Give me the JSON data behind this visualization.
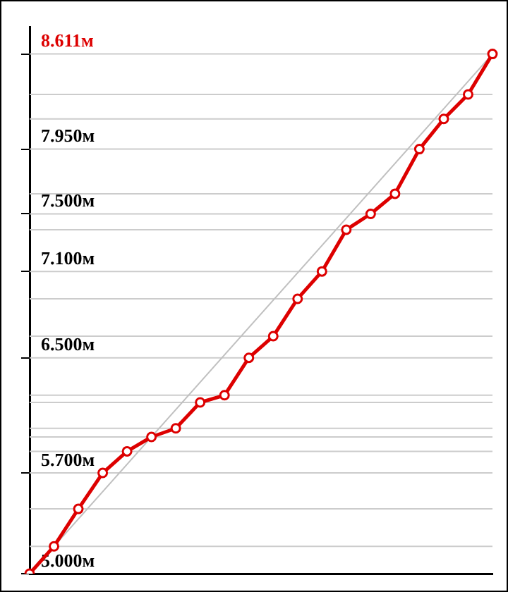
{
  "chart_data": {
    "type": "line",
    "categories": [
      null,
      null,
      null,
      null,
      null,
      null,
      null,
      null,
      null,
      null,
      null,
      null,
      null,
      null,
      null,
      null,
      null,
      null,
      null,
      null
    ],
    "series": [
      {
        "color": "#dd0000",
        "values": [
          5.0,
          5.19,
          5.45,
          5.7,
          5.85,
          5.95,
          6.01,
          6.19,
          6.24,
          6.5,
          6.65,
          6.91,
          7.1,
          7.39,
          7.5,
          7.64,
          7.95,
          8.16,
          8.33,
          8.611
        ],
        "marker": "circle"
      },
      {
        "type": "line",
        "color": "#c0c0c0",
        "values": [
          5.0,
          null,
          null,
          null,
          null,
          null,
          null,
          null,
          null,
          null,
          null,
          null,
          null,
          null,
          null,
          null,
          null,
          null,
          null,
          8.611
        ],
        "marker": "none"
      }
    ],
    "ylim": [
      5.0,
      8.8
    ],
    "yticks": [
      {
        "value": 5.0,
        "label": "5.000м"
      },
      {
        "value": 5.7,
        "label": "5.700м"
      },
      {
        "value": 6.5,
        "label": "6.500м"
      },
      {
        "value": 7.1,
        "label": "7.100м"
      },
      {
        "value": 7.5,
        "label": "7.500м"
      },
      {
        "value": 7.95,
        "label": "7.950м"
      },
      {
        "value": 8.611,
        "label": "8.611м"
      }
    ],
    "ref_lines": [
      {
        "axis": "y",
        "value": 5.19,
        "color": "#cccccc"
      },
      {
        "axis": "y",
        "value": 5.45,
        "color": "#cccccc"
      },
      {
        "axis": "y",
        "value": 5.7,
        "color": "#cccccc"
      },
      {
        "axis": "y",
        "value": 5.85,
        "color": "#cccccc"
      },
      {
        "axis": "y",
        "value": 5.95,
        "color": "#cccccc"
      },
      {
        "axis": "y",
        "value": 6.01,
        "color": "#cccccc"
      },
      {
        "axis": "y",
        "value": 6.19,
        "color": "#cccccc"
      },
      {
        "axis": "y",
        "value": 6.24,
        "color": "#cccccc"
      },
      {
        "axis": "y",
        "value": 6.5,
        "color": "#cccccc"
      },
      {
        "axis": "y",
        "value": 6.65,
        "color": "#cccccc"
      },
      {
        "axis": "y",
        "value": 6.91,
        "color": "#cccccc"
      },
      {
        "axis": "y",
        "value": 7.1,
        "color": "#cccccc"
      },
      {
        "axis": "y",
        "value": 7.39,
        "color": "#cccccc"
      },
      {
        "axis": "y",
        "value": 7.5,
        "color": "#cccccc"
      },
      {
        "axis": "y",
        "value": 7.64,
        "color": "#cccccc"
      },
      {
        "axis": "y",
        "value": 7.95,
        "color": "#cccccc"
      },
      {
        "axis": "y",
        "value": 8.16,
        "color": "#cccccc"
      },
      {
        "axis": "y",
        "value": 8.33,
        "color": "#cccccc"
      },
      {
        "axis": "y",
        "value": 8.611,
        "color": "#cccccc"
      }
    ],
    "grid": false,
    "legend": false,
    "tick_labels": "y",
    "line_style": "solid"
  }
}
